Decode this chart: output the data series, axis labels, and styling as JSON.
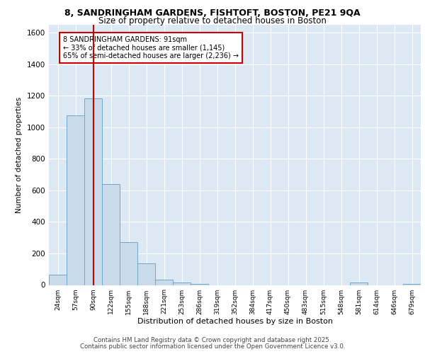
{
  "title_line1": "8, SANDRINGHAM GARDENS, FISHTOFT, BOSTON, PE21 9QA",
  "title_line2": "Size of property relative to detached houses in Boston",
  "xlabel": "Distribution of detached houses by size in Boston",
  "ylabel": "Number of detached properties",
  "bar_labels": [
    "24sqm",
    "57sqm",
    "90sqm",
    "122sqm",
    "155sqm",
    "188sqm",
    "221sqm",
    "253sqm",
    "286sqm",
    "319sqm",
    "352sqm",
    "384sqm",
    "417sqm",
    "450sqm",
    "483sqm",
    "515sqm",
    "548sqm",
    "581sqm",
    "614sqm",
    "646sqm",
    "679sqm"
  ],
  "bar_values": [
    65,
    1075,
    1185,
    640,
    270,
    135,
    35,
    15,
    5,
    0,
    0,
    0,
    0,
    0,
    0,
    0,
    0,
    15,
    0,
    0,
    5
  ],
  "bar_color": "#c9daea",
  "bar_edge_color": "#6fa8c8",
  "background_color": "#dce9f5",
  "grid_color": "#ffffff",
  "vline_x": 2,
  "vline_color": "#cc0000",
  "annotation_text": "8 SANDRINGHAM GARDENS: 91sqm\n← 33% of detached houses are smaller (1,145)\n65% of semi-detached houses are larger (2,236) →",
  "annotation_box_color": "#ffffff",
  "annotation_border_color": "#cc0000",
  "ylim": [
    0,
    1650
  ],
  "yticks": [
    0,
    200,
    400,
    600,
    800,
    1000,
    1200,
    1400,
    1600
  ],
  "footer_line1": "Contains HM Land Registry data © Crown copyright and database right 2025.",
  "footer_line2": "Contains public sector information licensed under the Open Government Licence v3.0."
}
